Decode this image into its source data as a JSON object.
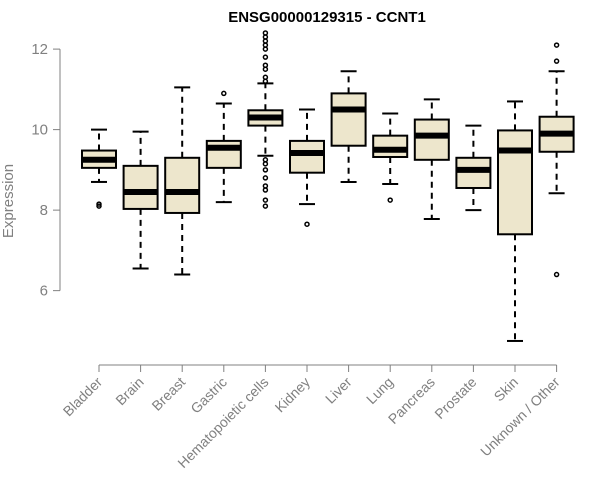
{
  "chart_data": {
    "type": "boxplot",
    "title": "ENSG00000129315 - CCNT1",
    "ylabel": "Expression",
    "xlabel": "",
    "ylim": [
      4.6,
      12.4
    ],
    "yticks": [
      6,
      8,
      10,
      12
    ],
    "colors": {
      "box_fill": "#ede6cc",
      "stroke": "#000000",
      "axis": "#808080"
    },
    "categories": [
      "Bladder",
      "Brain",
      "Breast",
      "Gastric",
      "Hematopoietic cells",
      "Kidney",
      "Liver",
      "Lung",
      "Pancreas",
      "Prostate",
      "Skin",
      "Unknown / Other"
    ],
    "boxes": [
      {
        "category": "Bladder",
        "min": 8.7,
        "q1": 9.05,
        "median": 9.25,
        "q3": 9.48,
        "max": 10.0,
        "outliers": [
          8.1,
          8.15
        ]
      },
      {
        "category": "Brain",
        "min": 6.55,
        "q1": 8.03,
        "median": 8.45,
        "q3": 9.1,
        "max": 9.95,
        "outliers": []
      },
      {
        "category": "Breast",
        "min": 6.4,
        "q1": 7.93,
        "median": 8.45,
        "q3": 9.3,
        "max": 11.05,
        "outliers": []
      },
      {
        "category": "Gastric",
        "min": 8.2,
        "q1": 9.05,
        "median": 9.55,
        "q3": 9.72,
        "max": 10.65,
        "outliers": [
          10.9
        ]
      },
      {
        "category": "Hematopoietic cells",
        "min": 9.35,
        "q1": 10.1,
        "median": 10.3,
        "q3": 10.48,
        "max": 11.15,
        "outliers": [
          11.2,
          11.3,
          11.5,
          11.6,
          11.8,
          12.0,
          12.1,
          12.2,
          12.3,
          12.4,
          9.25,
          9.15,
          9.0,
          8.8,
          8.6,
          8.5,
          8.25,
          8.1
        ]
      },
      {
        "category": "Kidney",
        "min": 8.15,
        "q1": 8.93,
        "median": 9.42,
        "q3": 9.72,
        "max": 10.5,
        "outliers": [
          7.65
        ]
      },
      {
        "category": "Liver",
        "min": 8.7,
        "q1": 9.6,
        "median": 10.5,
        "q3": 10.9,
        "max": 11.45,
        "outliers": []
      },
      {
        "category": "Lung",
        "min": 8.65,
        "q1": 9.32,
        "median": 9.5,
        "q3": 9.85,
        "max": 10.4,
        "outliers": [
          8.25
        ]
      },
      {
        "category": "Pancreas",
        "min": 7.78,
        "q1": 9.25,
        "median": 9.85,
        "q3": 10.25,
        "max": 10.75,
        "outliers": []
      },
      {
        "category": "Prostate",
        "min": 8.0,
        "q1": 8.55,
        "median": 9.0,
        "q3": 9.3,
        "max": 10.1,
        "outliers": []
      },
      {
        "category": "Skin",
        "min": 4.75,
        "q1": 7.4,
        "median": 9.48,
        "q3": 9.98,
        "max": 10.7,
        "outliers": []
      },
      {
        "category": "Unknown / Other",
        "min": 8.42,
        "q1": 9.45,
        "median": 9.9,
        "q3": 10.32,
        "max": 11.45,
        "outliers": [
          12.1,
          11.7,
          6.4
        ]
      }
    ]
  }
}
